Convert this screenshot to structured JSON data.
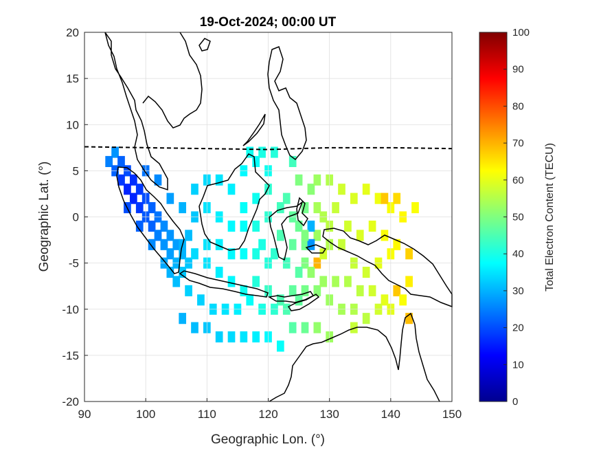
{
  "chart_data": {
    "type": "heatmap",
    "title": "19-Oct-2024; 00:00 UT",
    "xlabel": "Geographic Lon. (°)",
    "ylabel": "Geographic Lat. (°)",
    "xlim": [
      90,
      150
    ],
    "ylim": [
      -20,
      20
    ],
    "x_ticks": [
      "90",
      "100",
      "110",
      "120",
      "130",
      "140",
      "150"
    ],
    "y_ticks": [
      "20",
      "15",
      "10",
      "5",
      "0",
      "-5",
      "-10",
      "-15",
      "-20"
    ],
    "grid": true,
    "colorbar": {
      "label": "Total Electron Content (TECU)",
      "range": [
        0,
        100
      ],
      "ticks": [
        "100",
        "90",
        "80",
        "70",
        "60",
        "50",
        "40",
        "30",
        "20",
        "10",
        "0"
      ],
      "colormap": "jet"
    },
    "magnetic_equator": [
      [
        90,
        7.6
      ],
      [
        100,
        7.5
      ],
      [
        110,
        7.4
      ],
      [
        120,
        7.3
      ],
      [
        130,
        7.5
      ],
      [
        140,
        7.5
      ],
      [
        150,
        7.4
      ]
    ],
    "tec_points": [
      [
        95,
        7,
        27
      ],
      [
        96,
        6,
        22
      ],
      [
        97,
        5,
        20
      ],
      [
        98,
        4,
        17
      ],
      [
        99,
        3,
        18
      ],
      [
        100,
        2,
        20
      ],
      [
        101,
        1,
        22
      ],
      [
        102,
        0,
        24
      ],
      [
        103,
        -1,
        26
      ],
      [
        104,
        -2,
        27
      ],
      [
        105,
        -3,
        28
      ],
      [
        106,
        -4,
        30
      ],
      [
        107,
        -5,
        32
      ],
      [
        96,
        4,
        18
      ],
      [
        97,
        3,
        16
      ],
      [
        98,
        2,
        16
      ],
      [
        99,
        1,
        18
      ],
      [
        100,
        0,
        21
      ],
      [
        101,
        -1,
        22
      ],
      [
        102,
        -2,
        25
      ],
      [
        103,
        -3,
        27
      ],
      [
        104,
        -4,
        28
      ],
      [
        105,
        -5,
        30
      ],
      [
        106,
        -6,
        32
      ],
      [
        94,
        6,
        25
      ],
      [
        95,
        5,
        22
      ],
      [
        97,
        1,
        20
      ],
      [
        99,
        -1,
        22
      ],
      [
        101,
        -3,
        26
      ],
      [
        103,
        -5,
        29
      ],
      [
        105,
        -7,
        31
      ],
      [
        107,
        -8,
        33
      ],
      [
        100,
        5,
        24
      ],
      [
        102,
        4,
        26
      ],
      [
        104,
        2,
        28
      ],
      [
        106,
        1,
        30
      ],
      [
        108,
        0,
        32
      ],
      [
        107,
        -2,
        31
      ],
      [
        106,
        -3,
        30
      ],
      [
        104,
        -6,
        30
      ],
      [
        108,
        3,
        33
      ],
      [
        110,
        4,
        34
      ],
      [
        112,
        4,
        35
      ],
      [
        114,
        3,
        36
      ],
      [
        116,
        5,
        37
      ],
      [
        118,
        6,
        38
      ],
      [
        120,
        5,
        39
      ],
      [
        110,
        1,
        35
      ],
      [
        112,
        0,
        36
      ],
      [
        114,
        -1,
        37
      ],
      [
        116,
        1,
        38
      ],
      [
        118,
        2,
        39
      ],
      [
        108,
        -4,
        34
      ],
      [
        110,
        -5,
        35
      ],
      [
        112,
        -6,
        36
      ],
      [
        114,
        -7,
        37
      ],
      [
        116,
        -8,
        39
      ],
      [
        118,
        -7,
        41
      ],
      [
        120,
        -8,
        43
      ],
      [
        122,
        -9,
        45
      ],
      [
        124,
        -8,
        47
      ],
      [
        126,
        -8,
        49
      ],
      [
        128,
        -8,
        51
      ],
      [
        109,
        -9,
        33
      ],
      [
        111,
        -10,
        34
      ],
      [
        113,
        -10,
        35
      ],
      [
        115,
        -10,
        36
      ],
      [
        117,
        -9,
        38
      ],
      [
        119,
        -10,
        40
      ],
      [
        121,
        -10,
        42
      ],
      [
        123,
        -10,
        45
      ],
      [
        125,
        -9,
        47
      ],
      [
        106,
        -11,
        30
      ],
      [
        108,
        -12,
        31
      ],
      [
        110,
        -12,
        32
      ],
      [
        112,
        -13,
        33
      ],
      [
        114,
        -13,
        34
      ],
      [
        116,
        -13,
        35
      ],
      [
        118,
        -13,
        36
      ],
      [
        120,
        -13,
        37
      ],
      [
        122,
        -14,
        38
      ],
      [
        110,
        -3,
        35
      ],
      [
        112,
        -3,
        36
      ],
      [
        114,
        -4,
        37
      ],
      [
        116,
        -4,
        38
      ],
      [
        118,
        -4,
        40
      ],
      [
        120,
        -5,
        41
      ],
      [
        116,
        -1,
        38
      ],
      [
        118,
        -1,
        40
      ],
      [
        120,
        0,
        42
      ],
      [
        120,
        3,
        42
      ],
      [
        122,
        1,
        44
      ],
      [
        122,
        -2,
        45
      ],
      [
        124,
        -3,
        47
      ],
      [
        126,
        -3,
        49
      ],
      [
        123,
        2,
        45
      ],
      [
        124,
        0,
        47
      ],
      [
        125,
        -1,
        48
      ],
      [
        126,
        1,
        49
      ],
      [
        125,
        4,
        50
      ],
      [
        127,
        3,
        51
      ],
      [
        128,
        4,
        53
      ],
      [
        130,
        4,
        55
      ],
      [
        128,
        1,
        54
      ],
      [
        129,
        0,
        55
      ],
      [
        130,
        -1,
        56
      ],
      [
        131,
        1,
        57
      ],
      [
        128,
        -2,
        53
      ],
      [
        130,
        -3,
        55
      ],
      [
        132,
        -3,
        57
      ],
      [
        128,
        -5,
        70
      ],
      [
        129,
        -4,
        58
      ],
      [
        132,
        3,
        58
      ],
      [
        134,
        2,
        59
      ],
      [
        136,
        3,
        60
      ],
      [
        138,
        2,
        61
      ],
      [
        140,
        1,
        62
      ],
      [
        142,
        0,
        63
      ],
      [
        144,
        1,
        62
      ],
      [
        139,
        2,
        68
      ],
      [
        141,
        2,
        66
      ],
      [
        133,
        -1,
        58
      ],
      [
        135,
        -2,
        59
      ],
      [
        137,
        -1,
        60
      ],
      [
        139,
        -2,
        62
      ],
      [
        141,
        -3,
        63
      ],
      [
        143,
        -4,
        67
      ],
      [
        134,
        -5,
        57
      ],
      [
        136,
        -6,
        58
      ],
      [
        138,
        -5,
        60
      ],
      [
        140,
        -4,
        62
      ],
      [
        126,
        -5,
        50
      ],
      [
        127,
        -6,
        52
      ],
      [
        129,
        -7,
        53
      ],
      [
        131,
        -7,
        54
      ],
      [
        133,
        -7,
        55
      ],
      [
        135,
        -8,
        56
      ],
      [
        137,
        -8,
        58
      ],
      [
        139,
        -9,
        60
      ],
      [
        141,
        -8,
        68
      ],
      [
        143,
        -7,
        64
      ],
      [
        130,
        -9,
        53
      ],
      [
        132,
        -10,
        54
      ],
      [
        134,
        -10,
        55
      ],
      [
        136,
        -11,
        56
      ],
      [
        138,
        -10,
        58
      ],
      [
        140,
        -10,
        60
      ],
      [
        142,
        -9,
        62
      ],
      [
        143,
        -11,
        69
      ],
      [
        134,
        -12,
        57
      ],
      [
        128,
        -12,
        52
      ],
      [
        130,
        -13,
        53
      ],
      [
        124,
        -12,
        46
      ],
      [
        126,
        -12,
        48
      ],
      [
        119,
        -3,
        40
      ],
      [
        121,
        -4,
        42
      ],
      [
        123,
        -5,
        44
      ],
      [
        125,
        -6,
        46
      ],
      [
        127,
        -1,
        30
      ],
      [
        127,
        -3,
        27
      ],
      [
        126,
        -2,
        50
      ],
      [
        124,
        6,
        44
      ],
      [
        121,
        7,
        41
      ],
      [
        119,
        7,
        40
      ],
      [
        117,
        7,
        39
      ]
    ]
  }
}
